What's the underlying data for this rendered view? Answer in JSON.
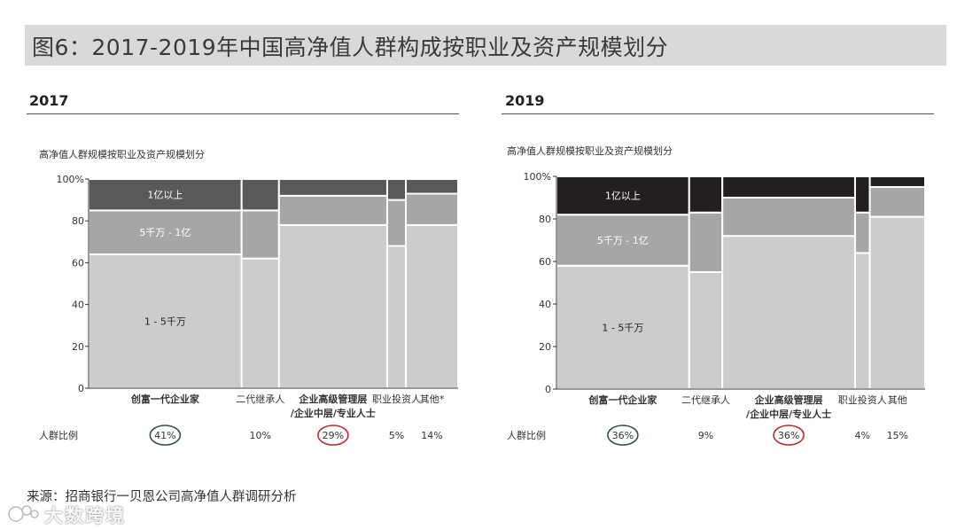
{
  "title": "图6：2017-2019年中国高净值人群构成按职业及资产规模划分",
  "source": "来源：招商银行一贝恩公司高净值人群调研分析",
  "watermark": "大数跨境",
  "colors": {
    "tier_top_2017": "#595959",
    "tier_top_2019": "#231f20",
    "tier_mid": "#a6a6a6",
    "tier_low": "#cccccc",
    "circle_green": "#2f4f4f",
    "circle_red": "#c0282d"
  },
  "chart_data": [
    {
      "type": "marimekko",
      "year": "2017",
      "subtitle": "高净值人群规模按职业及资产规模划分",
      "ratio_row_label": "人群比例",
      "ylim": [
        0,
        100
      ],
      "y_ticks": [
        "0",
        "20",
        "40",
        "60",
        "80",
        "100%"
      ],
      "categories": [
        "创富一代企业家",
        "二代继承人",
        "企业高级管理层/企业中层/专业人士",
        "职业投资人",
        "其他*"
      ],
      "category_label_lines": [
        [
          "创富一代企业家"
        ],
        [
          "二代继承人"
        ],
        [
          "企业高级管理层",
          "/企业中层/专业人士"
        ],
        [
          "职业投资人"
        ],
        [
          "其他*"
        ]
      ],
      "category_bold": [
        true,
        false,
        true,
        false,
        false
      ],
      "widths": [
        41,
        10,
        29,
        5,
        14
      ],
      "width_labels": [
        "41%",
        "10%",
        "29%",
        "5%",
        "14%"
      ],
      "circled": [
        "green",
        null,
        "red",
        null,
        null
      ],
      "series": [
        {
          "name": "1 - 5千万",
          "values": [
            64,
            62,
            78,
            68,
            78
          ]
        },
        {
          "name": "5千万 - 1亿",
          "values": [
            21,
            23,
            14,
            22,
            15
          ]
        },
        {
          "name": "1亿以上",
          "values": [
            15,
            15,
            8,
            10,
            7
          ]
        }
      ]
    },
    {
      "type": "marimekko",
      "year": "2019",
      "subtitle": "高净值人群规模按职业及资产规模划分",
      "ratio_row_label": "人群比例",
      "ylim": [
        0,
        100
      ],
      "y_ticks": [
        "0",
        "20",
        "40",
        "60",
        "80",
        "100%"
      ],
      "categories": [
        "创富一代企业家",
        "二代继承人",
        "企业高级管理层/企业中层/专业人士",
        "职业投资人",
        "其他"
      ],
      "category_label_lines": [
        [
          "创富一代企业家"
        ],
        [
          "二代继承人"
        ],
        [
          "企业高级管理层",
          "/企业中层/专业人士"
        ],
        [
          "职业投资人"
        ],
        [
          "其他"
        ]
      ],
      "category_bold": [
        true,
        false,
        true,
        false,
        false
      ],
      "widths": [
        36,
        9,
        36,
        4,
        15
      ],
      "width_labels": [
        "36%",
        "9%",
        "36%",
        "4%",
        "15%"
      ],
      "circled": [
        "green",
        null,
        "red",
        null,
        null
      ],
      "series": [
        {
          "name": "1 - 5千万",
          "values": [
            58,
            55,
            72,
            64,
            81
          ]
        },
        {
          "name": "5千万 - 1亿",
          "values": [
            24,
            28,
            18,
            19,
            14
          ]
        },
        {
          "name": "1亿以上",
          "values": [
            18,
            17,
            10,
            17,
            5
          ]
        }
      ]
    }
  ]
}
